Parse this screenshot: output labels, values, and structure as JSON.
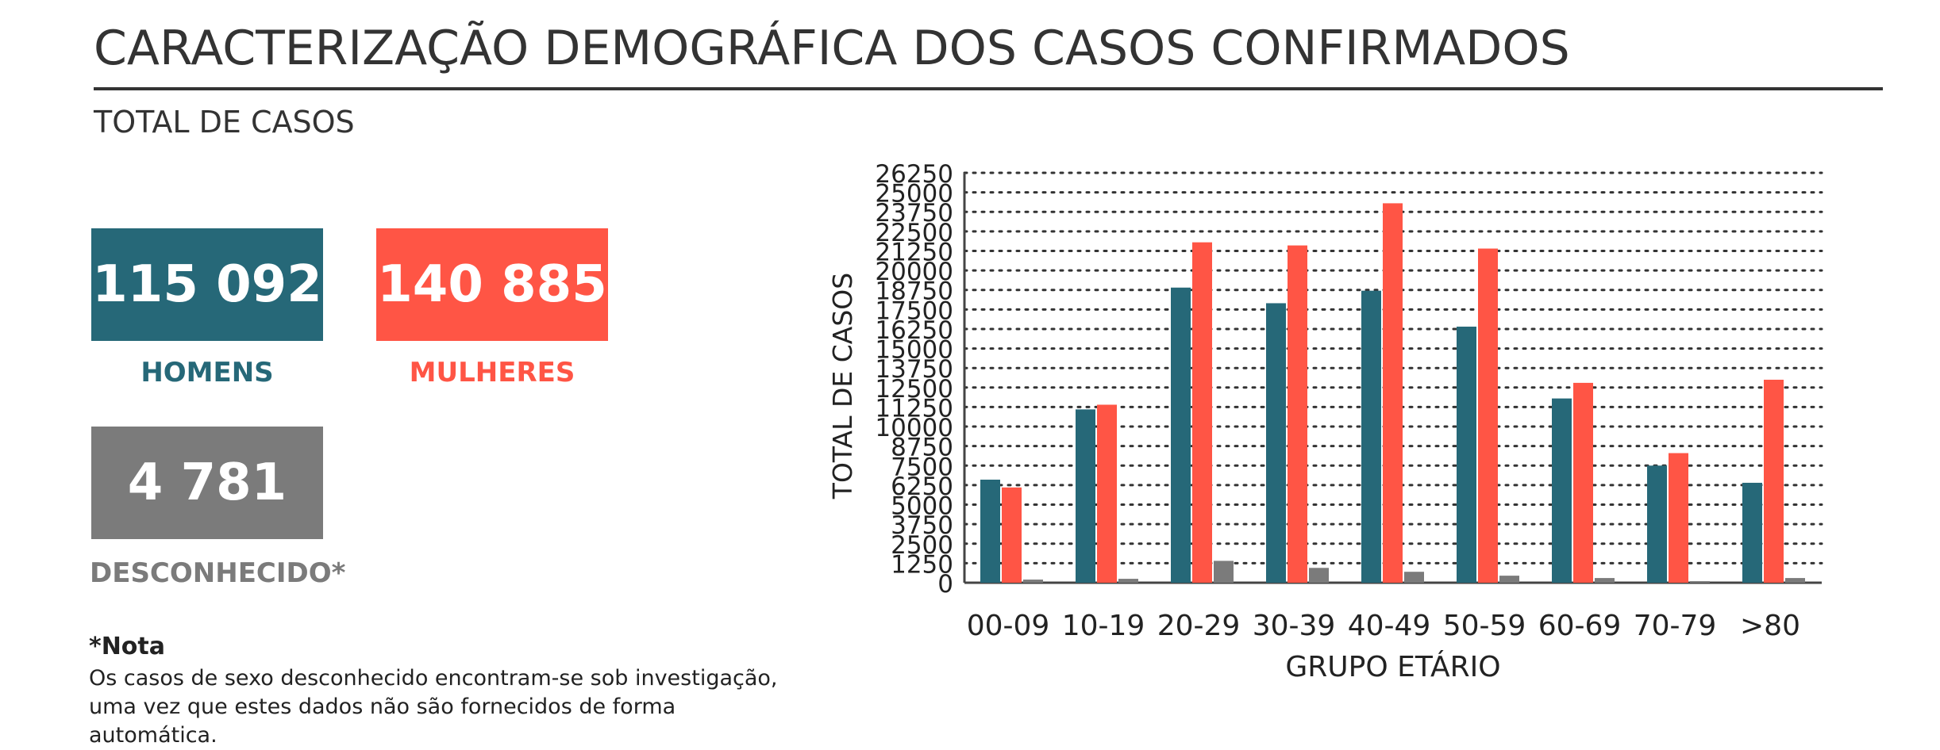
{
  "header": {
    "title": "CARACTERIZAÇÃO DEMOGRÁFICA DOS CASOS CONFIRMADOS",
    "subtitle": "TOTAL DE CASOS"
  },
  "totals": {
    "men": {
      "value": "115 092",
      "label": "HOMENS",
      "color": "#266878"
    },
    "women": {
      "value": "140 885",
      "label": "MULHERES",
      "color": "#ff5545"
    },
    "unknown": {
      "value": "4 781",
      "label": "DESCONHECIDO*",
      "color": "#7b7b7b"
    }
  },
  "note": {
    "title": "*Nota",
    "lines": [
      "Os casos de sexo desconhecido encontram-se sob investigação,",
      "uma vez que estes dados não são fornecidos de forma automática."
    ]
  },
  "chart_data": {
    "type": "bar",
    "xlabel": "GRUPO ETÁRIO",
    "ylabel": "TOTAL DE CASOS",
    "categories": [
      "00-09",
      "10-19",
      "20-29",
      "30-39",
      "40-49",
      "50-59",
      "60-69",
      "70-79",
      ">80"
    ],
    "ylim": [
      0,
      26250
    ],
    "yticks": [
      0,
      1250,
      2500,
      3750,
      5000,
      6250,
      7500,
      8750,
      10000,
      11250,
      12500,
      13750,
      15000,
      16250,
      17500,
      18750,
      20000,
      21250,
      22500,
      23750,
      25000,
      26250
    ],
    "grid": true,
    "series": [
      {
        "values": [
          6600,
          11100,
          18900,
          17900,
          18700,
          16400,
          11800,
          7500,
          6400
        ],
        "color": "#266878"
      },
      {
        "values": [
          6100,
          11400,
          21800,
          21600,
          24300,
          21400,
          12800,
          8300,
          13000
        ],
        "color": "#ff5545"
      },
      {
        "values": [
          200,
          250,
          1400,
          950,
          700,
          450,
          300,
          100,
          300
        ],
        "color": "#7b7b7b"
      }
    ]
  }
}
